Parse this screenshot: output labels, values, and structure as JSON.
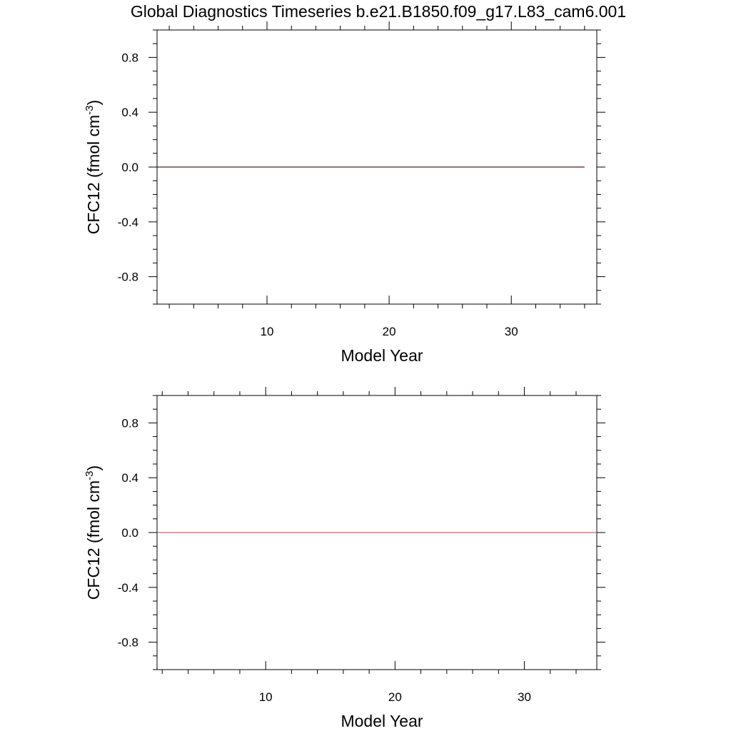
{
  "title": "Global Diagnostics Timeseries b.e21.B1850.f09_g17.L83_cam6.001",
  "colors": {
    "axis": "#000000",
    "series_top": "#5a1e1e",
    "series_bottom": "#b87060"
  },
  "chart_data": [
    {
      "type": "line",
      "xlabel": "Model Year",
      "ylabel": "CFC12 (fmol cm",
      "ylabel_sup": "-3",
      "ylabel_close": ")",
      "xlim": [
        1,
        37
      ],
      "ylim": [
        -1,
        1
      ],
      "xticks": [
        10,
        20,
        30
      ],
      "xtick_labels": [
        "10",
        "20",
        "30"
      ],
      "yticks": [
        0.8,
        0.4,
        0.0,
        -0.4,
        -0.8
      ],
      "ytick_labels": [
        "0.8",
        "0.4",
        "0.0",
        "-0.4",
        "-0.8"
      ],
      "grid": false,
      "series": [
        {
          "x": [
            1,
            36
          ],
          "y": [
            0,
            0
          ],
          "color": "#5a1e1e"
        }
      ]
    },
    {
      "type": "line",
      "xlabel": "Model Year",
      "ylabel": "CFC12 (fmol cm",
      "ylabel_sup": "-3",
      "ylabel_close": ")",
      "xlim": [
        1.6,
        35.6
      ],
      "ylim": [
        -1,
        1
      ],
      "xticks": [
        10,
        20,
        30
      ],
      "xtick_labels": [
        "10",
        "20",
        "30"
      ],
      "yticks": [
        0.8,
        0.4,
        0.0,
        -0.4,
        -0.8
      ],
      "ytick_labels": [
        "0.8",
        "0.4",
        "0.0",
        "-0.4",
        "-0.8"
      ],
      "grid": false,
      "series": [
        {
          "x": [
            1.6,
            35.6
          ],
          "y": [
            0,
            0
          ],
          "color": "#b87060"
        }
      ]
    }
  ]
}
